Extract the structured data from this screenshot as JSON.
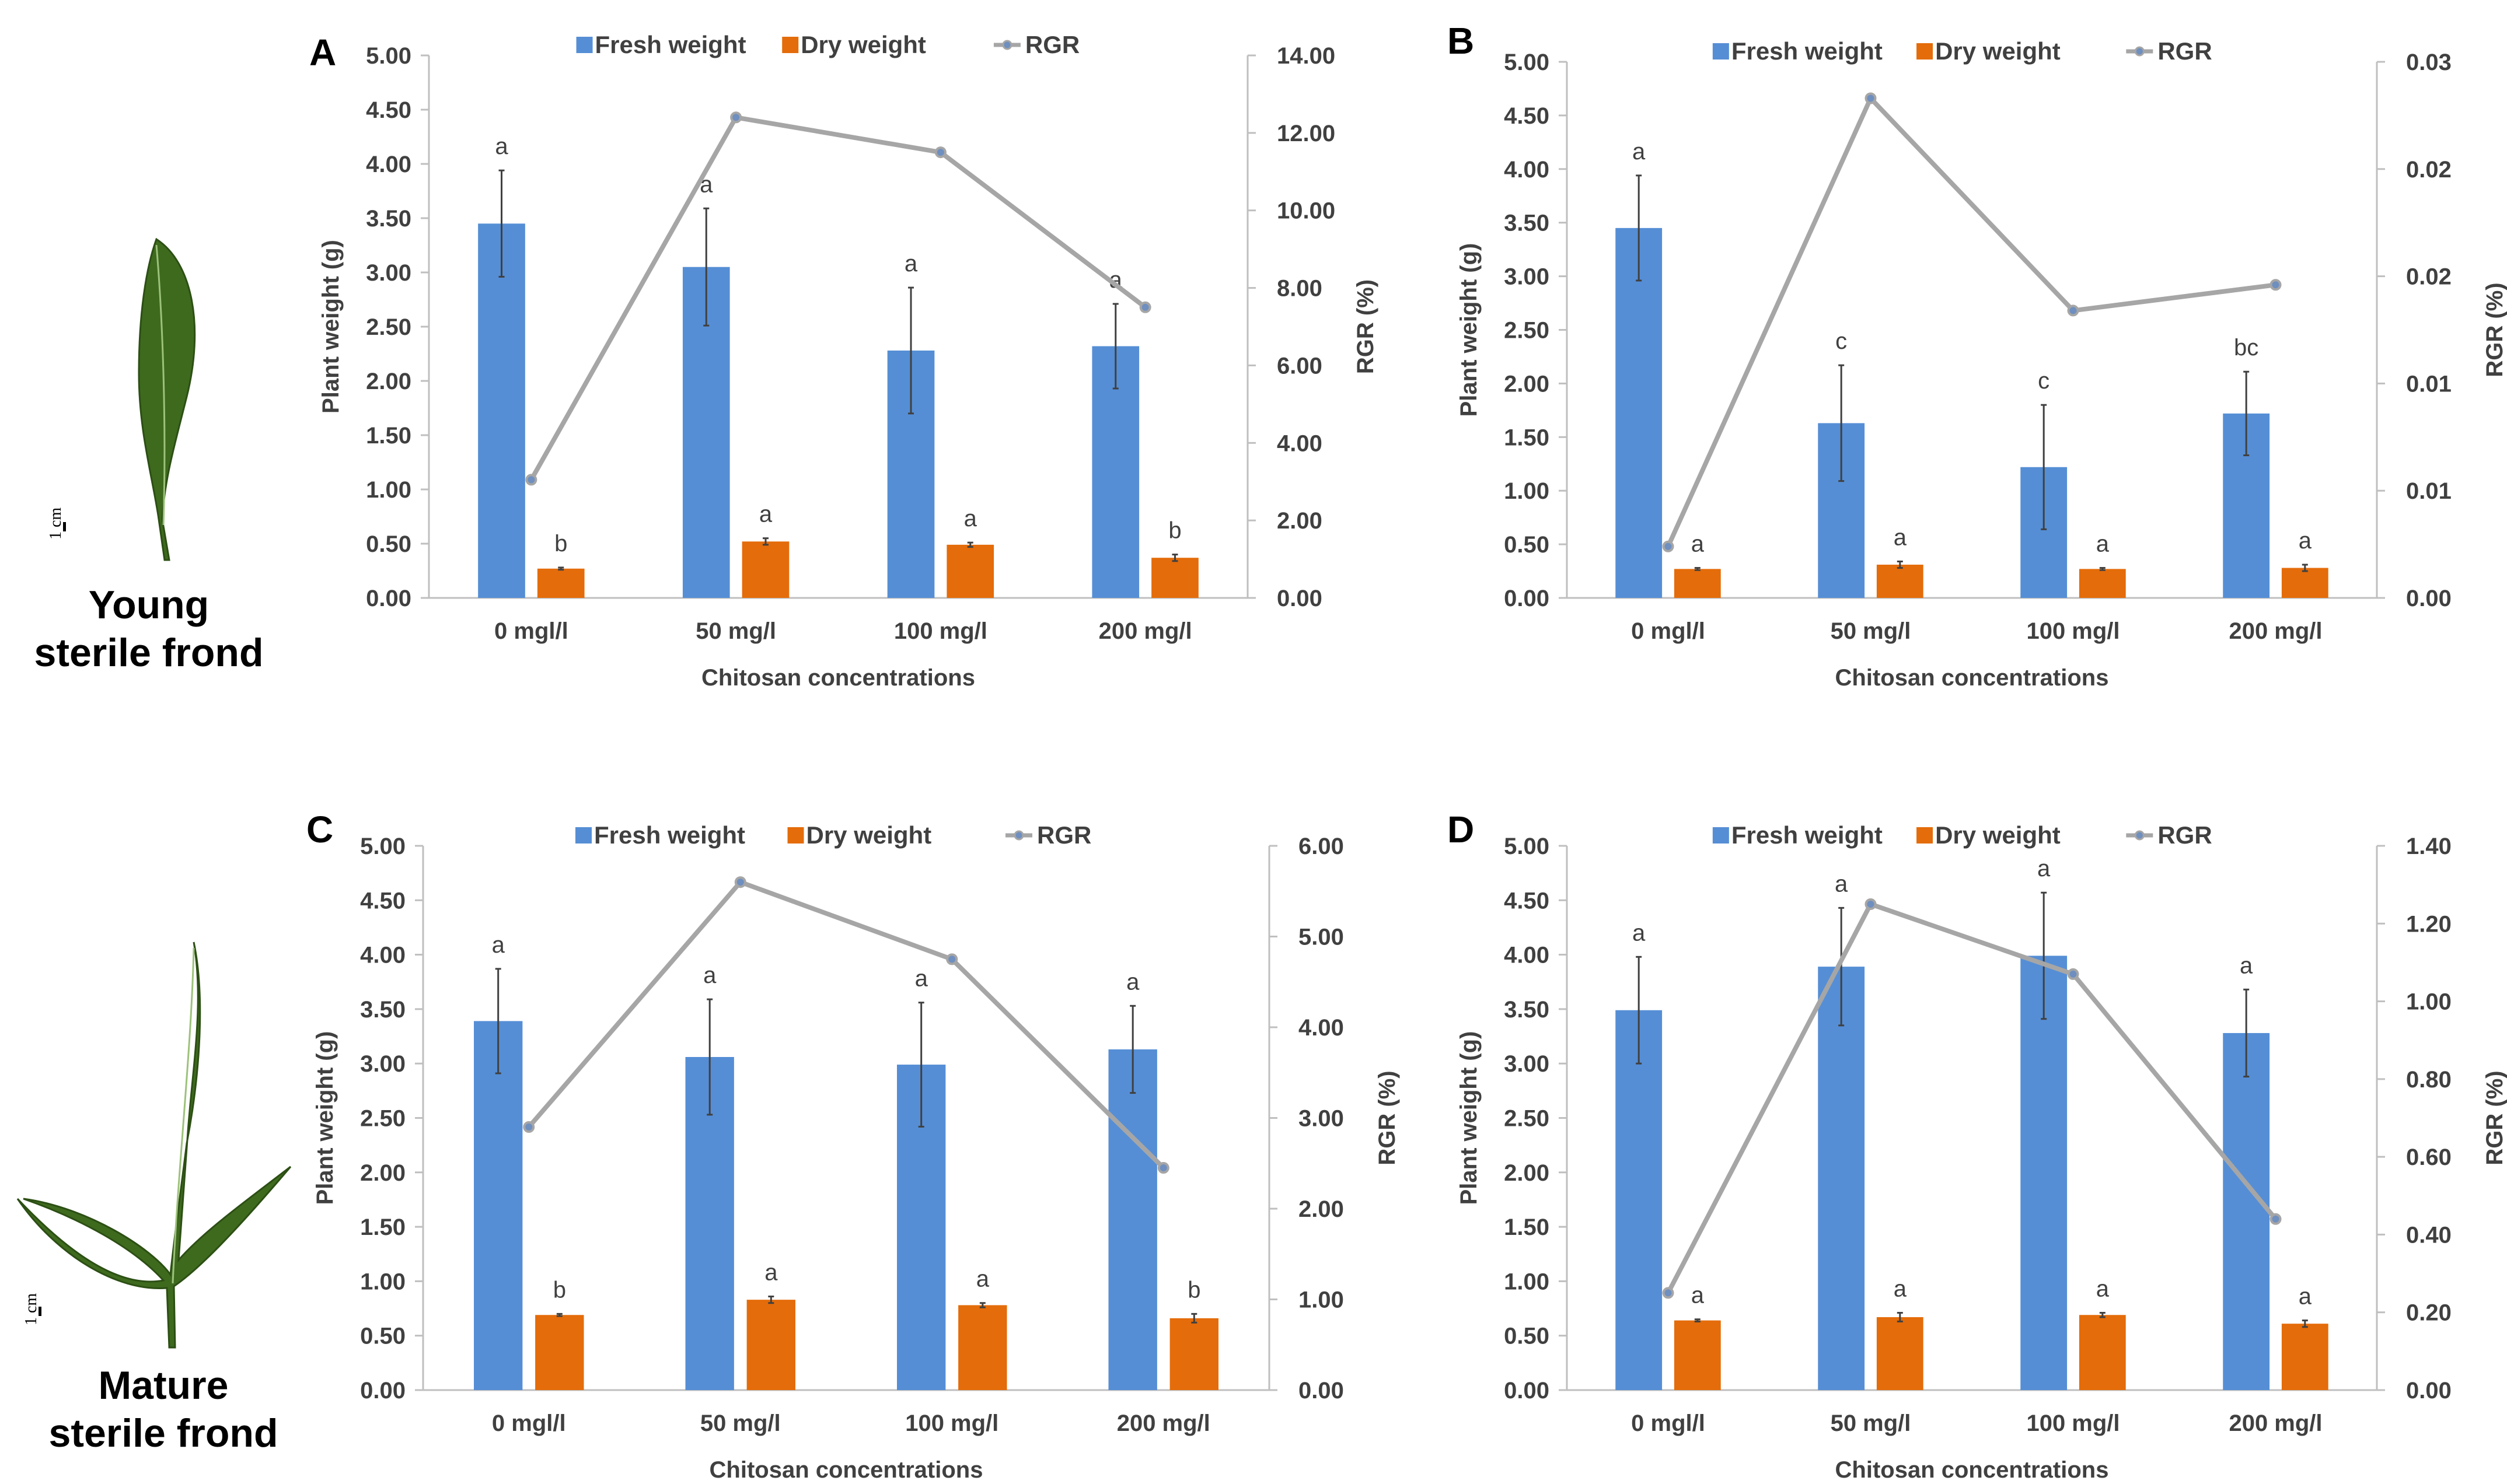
{
  "colors": {
    "fresh": "#558ed5",
    "dry": "#e46c0a",
    "rgr": "#a6a6a6",
    "axis": "#bfbfbf",
    "text": "#404040",
    "leaf": "#3e6a1e",
    "leaf_dark": "#2c4f14"
  },
  "side_labels": {
    "young": [
      "Young",
      "sterile frond"
    ],
    "mature": [
      "Mature",
      "sterile frond"
    ],
    "scale": "1 cm"
  },
  "chart_data": [
    {
      "panel": "A",
      "type": "bar",
      "categories": [
        "0 mgl/l",
        "50 mg/l",
        "100 mg/l",
        "200 mg/l"
      ],
      "xlabel": "Chitosan concentrations",
      "ylabel": "Plant weight (g)",
      "y2label": "RGR (%)",
      "ylim": [
        0,
        5
      ],
      "yticks": [
        "0.00",
        "0.50",
        "1.00",
        "1.50",
        "2.00",
        "2.50",
        "3.00",
        "3.50",
        "4.00",
        "4.50",
        "5.00"
      ],
      "y2lim": [
        0,
        14
      ],
      "y2ticks": [
        "0.00",
        "2.00",
        "4.00",
        "6.00",
        "8.00",
        "10.00",
        "12.00",
        "14.00"
      ],
      "legend": [
        "Fresh weight",
        "Dry weight",
        "RGR"
      ],
      "series": [
        {
          "name": "Fresh weight",
          "values": [
            3.45,
            3.05,
            2.28,
            2.32
          ],
          "errors": [
            0.49,
            0.54,
            0.58,
            0.39
          ],
          "labels": [
            "a",
            "a",
            "a",
            "a"
          ]
        },
        {
          "name": "Dry weight",
          "values": [
            0.27,
            0.52,
            0.49,
            0.37
          ],
          "errors": [
            0.01,
            0.03,
            0.02,
            0.03
          ],
          "labels": [
            "b",
            "a",
            "a",
            "b"
          ]
        },
        {
          "name": "RGR",
          "axis": "right",
          "values": [
            3.05,
            12.4,
            11.5,
            7.5
          ]
        }
      ]
    },
    {
      "panel": "B",
      "type": "bar",
      "categories": [
        "0 mgl/l",
        "50 mg/l",
        "100 mg/l",
        "200 mg/l"
      ],
      "xlabel": "Chitosan concentrations",
      "ylabel": "Plant weight (g)",
      "y2label": "RGR (%)",
      "ylim": [
        0,
        5
      ],
      "yticks": [
        "0.00",
        "0.50",
        "1.00",
        "1.50",
        "2.00",
        "2.50",
        "3.00",
        "3.50",
        "4.00",
        "4.50",
        "5.00"
      ],
      "y2lim": [
        0,
        0.025
      ],
      "y2ticks": [
        "0.00",
        "0.01",
        "0.01",
        "0.02",
        "0.02",
        "0.03"
      ],
      "legend": [
        "Fresh weight",
        "Dry weight",
        "RGR"
      ],
      "series": [
        {
          "name": "Fresh weight",
          "values": [
            3.45,
            1.63,
            1.22,
            1.72
          ],
          "errors": [
            0.49,
            0.54,
            0.58,
            0.39
          ],
          "labels": [
            "a",
            "c",
            "c",
            "bc"
          ]
        },
        {
          "name": "Dry weight",
          "values": [
            0.27,
            0.31,
            0.27,
            0.28
          ],
          "errors": [
            0.01,
            0.03,
            0.01,
            0.03
          ],
          "labels": [
            "a",
            "a",
            "a",
            "a"
          ]
        },
        {
          "name": "RGR",
          "axis": "right",
          "values": [
            0.0024,
            0.0233,
            0.0134,
            0.0146
          ]
        }
      ]
    },
    {
      "panel": "C",
      "type": "bar",
      "categories": [
        "0 mgl/l",
        "50 mg/l",
        "100 mg/l",
        "200 mg/l"
      ],
      "xlabel": "Chitosan concentrations",
      "ylabel": "Plant weight (g)",
      "y2label": "RGR (%)",
      "ylim": [
        0,
        5
      ],
      "yticks": [
        "0.00",
        "0.50",
        "1.00",
        "1.50",
        "2.00",
        "2.50",
        "3.00",
        "3.50",
        "4.00",
        "4.50",
        "5.00"
      ],
      "y2lim": [
        0,
        6
      ],
      "y2ticks": [
        "0.00",
        "1.00",
        "2.00",
        "3.00",
        "4.00",
        "5.00",
        "6.00"
      ],
      "legend": [
        "Fresh weight",
        "Dry weight",
        "RGR"
      ],
      "series": [
        {
          "name": "Fresh weight",
          "values": [
            3.39,
            3.06,
            2.99,
            3.13
          ],
          "errors": [
            0.48,
            0.53,
            0.57,
            0.4
          ],
          "labels": [
            "a",
            "a",
            "a",
            "a"
          ]
        },
        {
          "name": "Dry weight",
          "values": [
            0.69,
            0.83,
            0.78,
            0.66
          ],
          "errors": [
            0.01,
            0.03,
            0.02,
            0.04
          ],
          "labels": [
            "b",
            "a",
            "a",
            "b"
          ]
        },
        {
          "name": "RGR",
          "axis": "right",
          "values": [
            2.9,
            5.6,
            4.75,
            2.45
          ]
        }
      ]
    },
    {
      "panel": "D",
      "type": "bar",
      "categories": [
        "0 mgl/l",
        "50 mg/l",
        "100 mg/l",
        "200 mg/l"
      ],
      "xlabel": "Chitosan concentrations",
      "ylabel": "Plant weight (g)",
      "y2label": "RGR (%)",
      "ylim": [
        0,
        5
      ],
      "yticks": [
        "0.00",
        "0.50",
        "1.00",
        "1.50",
        "2.00",
        "2.50",
        "3.00",
        "3.50",
        "4.00",
        "4.50",
        "5.00"
      ],
      "y2lim": [
        0,
        1.4
      ],
      "y2ticks": [
        "0.00",
        "0.20",
        "0.40",
        "0.60",
        "0.80",
        "1.00",
        "1.20",
        "1.40"
      ],
      "legend": [
        "Fresh weight",
        "Dry weight",
        "RGR"
      ],
      "series": [
        {
          "name": "Fresh weight",
          "values": [
            3.49,
            3.89,
            3.99,
            3.28
          ],
          "errors": [
            0.49,
            0.54,
            0.58,
            0.4
          ],
          "labels": [
            "a",
            "a",
            "a",
            "a"
          ]
        },
        {
          "name": "Dry weight",
          "values": [
            0.64,
            0.67,
            0.69,
            0.61
          ],
          "errors": [
            0.01,
            0.04,
            0.02,
            0.03
          ],
          "labels": [
            "a",
            "a",
            "a",
            "a"
          ]
        },
        {
          "name": "RGR",
          "axis": "right",
          "values": [
            0.25,
            1.25,
            1.07,
            0.44
          ]
        }
      ]
    }
  ]
}
